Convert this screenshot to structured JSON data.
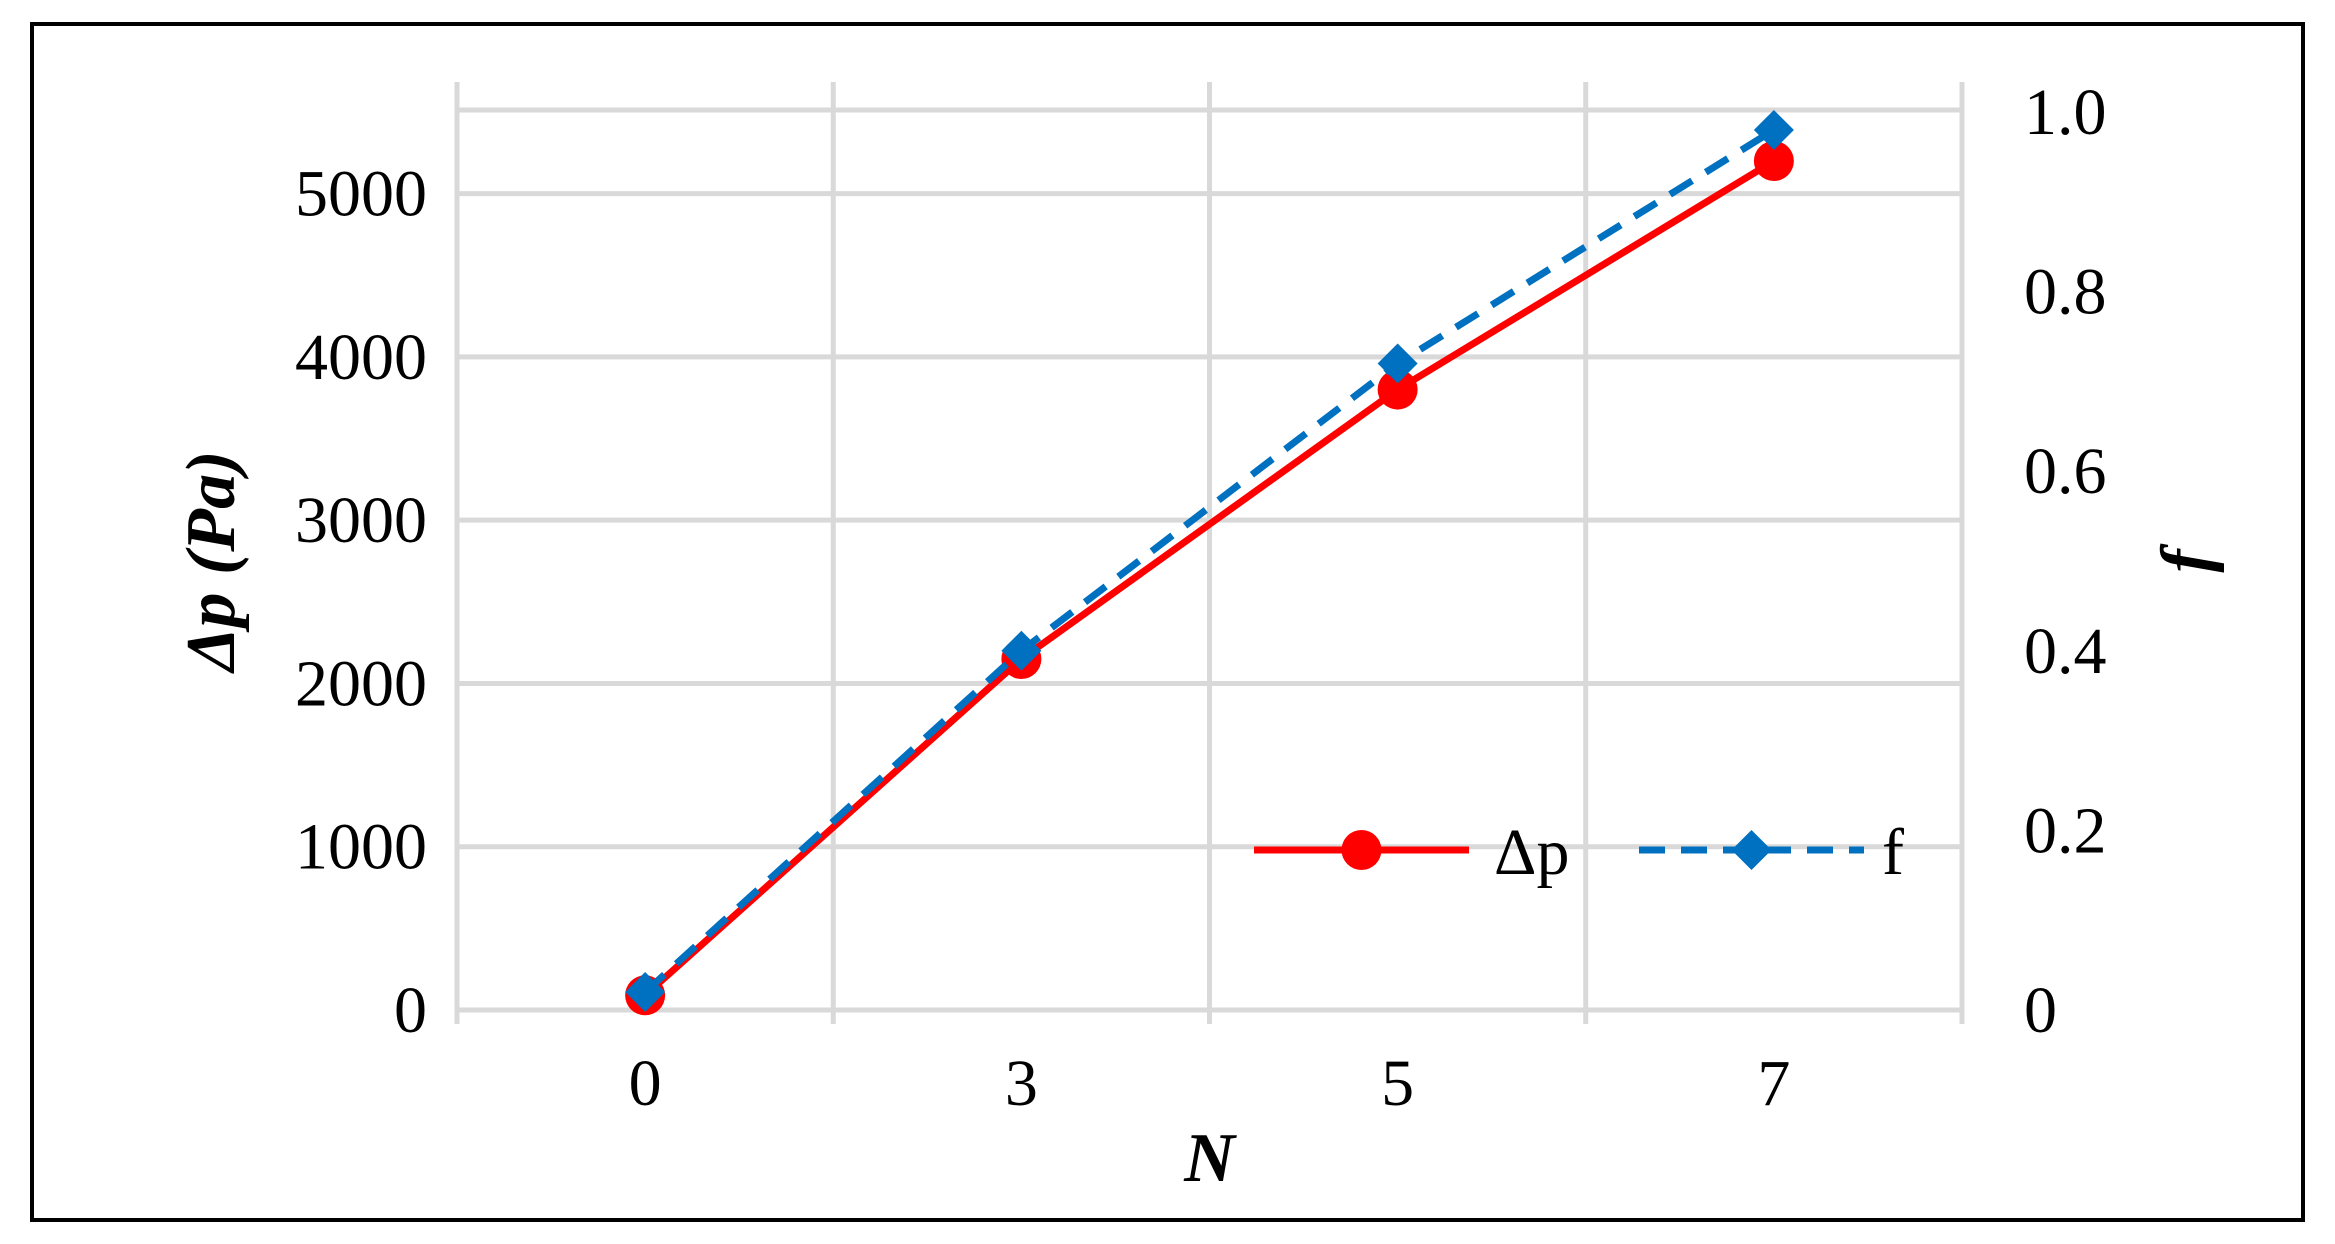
{
  "chart_data": {
    "type": "line",
    "categories": [
      "0",
      "3",
      "5",
      "7"
    ],
    "series": [
      {
        "name": "Δp",
        "axis": "left",
        "values": [
          90,
          2150,
          3800,
          5200
        ],
        "color": "#ff0000",
        "style": "solid",
        "marker": "circle"
      },
      {
        "name": "f",
        "axis": "right",
        "values": [
          0.02,
          0.4,
          0.72,
          0.98
        ],
        "color": "#0070c0",
        "style": "dashed",
        "marker": "diamond"
      }
    ],
    "xlabel": "N",
    "ylabel_left": "Δp (Pa)",
    "ylabel_right": "f",
    "ylim_left": [
      0,
      5500
    ],
    "ylim_right": [
      0,
      1.0
    ],
    "yticks_left": [
      "0",
      "1000",
      "2000",
      "3000",
      "4000",
      "5000"
    ],
    "yticks_right": [
      "0",
      "0.2",
      "0.4",
      "0.6",
      "0.8",
      "1.0"
    ],
    "grid": true,
    "legend_position": "bottom-right inside"
  }
}
